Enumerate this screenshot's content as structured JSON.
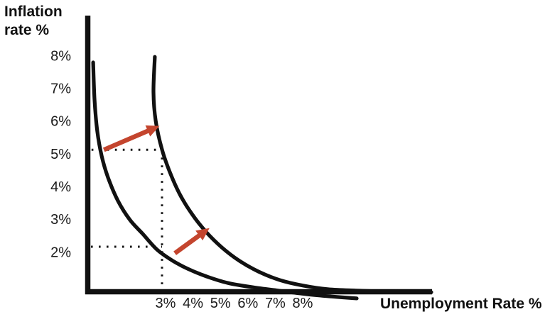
{
  "page": {
    "background": "#ffffff"
  },
  "colors": {
    "ink": "#111111",
    "arrow": "#c4452e",
    "text": "#1a1a1a"
  },
  "labels": {
    "y_axis_title": "Inflation\nrate %",
    "x_axis_title": "Unemployment Rate %"
  },
  "chart_data": {
    "type": "line",
    "xlabel": "Unemployment Rate %",
    "ylabel": "Inflation rate %",
    "x_tick_labels": [
      "3%",
      "4%",
      "5%",
      "6%",
      "7%",
      "8%"
    ],
    "x_tick_values": [
      3,
      4,
      5,
      6,
      7,
      8
    ],
    "y_tick_labels": [
      "8%",
      "7%",
      "6%",
      "5%",
      "4%",
      "3%",
      "2%"
    ],
    "y_tick_values": [
      8,
      7,
      6,
      5,
      4,
      3,
      2
    ],
    "xlim": [
      0,
      12.8
    ],
    "ylim": [
      0,
      8.7
    ],
    "grid": false,
    "legend": false,
    "series": [
      {
        "name": "short-run-phillips-curve-initial",
        "color": "#111111",
        "points": [
          [
            0.36,
            7.79
          ],
          [
            0.41,
            6.66
          ],
          [
            0.51,
            5.69
          ],
          [
            0.67,
            4.93
          ],
          [
            0.9,
            4.28
          ],
          [
            1.26,
            3.57
          ],
          [
            1.7,
            2.98
          ],
          [
            2.17,
            2.55
          ],
          [
            2.69,
            2.07
          ],
          [
            3.26,
            1.73
          ],
          [
            3.85,
            1.47
          ],
          [
            4.5,
            1.25
          ],
          [
            5.28,
            1.05
          ],
          [
            6.19,
            0.92
          ],
          [
            7.09,
            0.82
          ],
          [
            8.13,
            0.71
          ],
          [
            9.04,
            0.64
          ],
          [
            9.97,
            0.58
          ]
        ]
      },
      {
        "name": "short-run-phillips-curve-shifted-right",
        "color": "#111111",
        "points": [
          [
            2.61,
            7.96
          ],
          [
            2.56,
            6.88
          ],
          [
            2.64,
            6.01
          ],
          [
            2.87,
            5.13
          ],
          [
            3.16,
            4.43
          ],
          [
            3.52,
            3.76
          ],
          [
            3.96,
            3.16
          ],
          [
            4.48,
            2.61
          ],
          [
            5.05,
            2.14
          ],
          [
            5.69,
            1.73
          ],
          [
            6.39,
            1.4
          ],
          [
            7.17,
            1.14
          ],
          [
            8.03,
            0.97
          ],
          [
            8.93,
            0.86
          ],
          [
            9.92,
            0.82
          ],
          [
            11.08,
            0.79
          ],
          [
            12.25,
            0.77
          ],
          [
            12.69,
            0.77
          ]
        ]
      }
    ],
    "guides": [
      {
        "name": "guide-inflation-5pct",
        "orientation": "horizontal",
        "y": 5.12,
        "x_from": 0.3,
        "x_to": 2.87
      },
      {
        "name": "guide-inflation-2pct",
        "orientation": "horizontal",
        "y": 2.16,
        "x_from": 0.28,
        "x_to": 2.87
      },
      {
        "name": "guide-unemployment-3pct",
        "orientation": "vertical",
        "x": 2.87,
        "y_from": 0.9,
        "y_to": 5.12
      }
    ],
    "shift_arrows": [
      {
        "name": "shift-arrow-upper",
        "from": [
          0.75,
          5.12
        ],
        "to": [
          2.78,
          5.85
        ]
      },
      {
        "name": "shift-arrow-lower",
        "from": [
          3.34,
          1.96
        ],
        "to": [
          4.6,
          2.73
        ]
      }
    ]
  }
}
